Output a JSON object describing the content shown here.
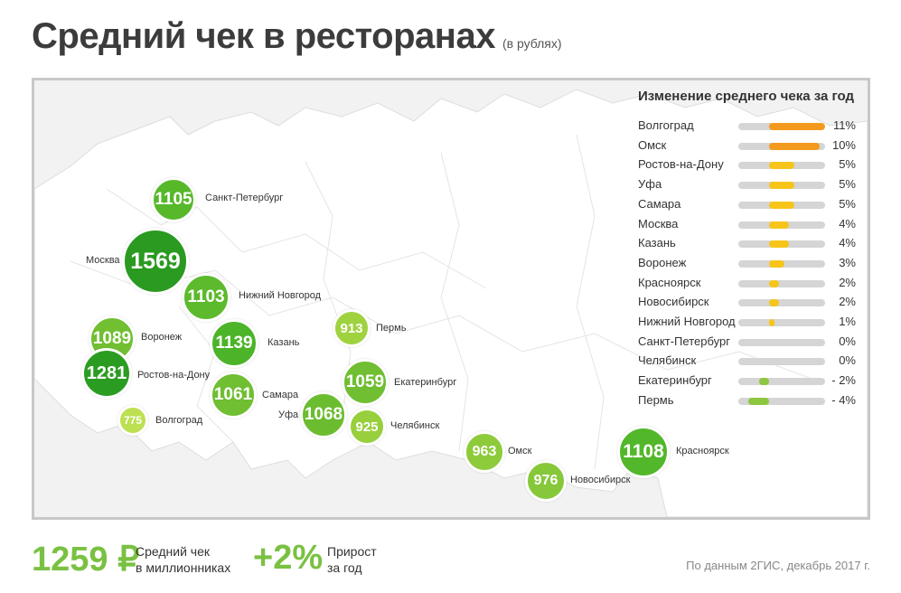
{
  "title": "Средний чек в ресторанах",
  "subtitle": "(в рублях)",
  "chart_data": [
    {
      "type": "bubble-map",
      "points": [
        {
          "city": "Санкт-Петербург",
          "value": 1105
        },
        {
          "city": "Москва",
          "value": 1569
        },
        {
          "city": "Нижний Новгород",
          "value": 1103
        },
        {
          "city": "Воронеж",
          "value": 1089
        },
        {
          "city": "Казань",
          "value": 1139
        },
        {
          "city": "Пермь",
          "value": 913
        },
        {
          "city": "Ростов-на-Дону",
          "value": 1281
        },
        {
          "city": "Самара",
          "value": 1061
        },
        {
          "city": "Екатеринбург",
          "value": 1059
        },
        {
          "city": "Волгоград",
          "value": 775
        },
        {
          "city": "Уфа",
          "value": 1068
        },
        {
          "city": "Челябинск",
          "value": 925
        },
        {
          "city": "Омск",
          "value": 963
        },
        {
          "city": "Красноярск",
          "value": 1108
        },
        {
          "city": "Новосибирск",
          "value": 976
        }
      ]
    },
    {
      "type": "bar",
      "title": "Изменение среднего чека за год",
      "categories": [
        "Волгоград",
        "Омск",
        "Ростов-на-Дону",
        "Уфа",
        "Самара",
        "Москва",
        "Казань",
        "Воронеж",
        "Красноярск",
        "Новосибирск",
        "Нижний Новгород",
        "Санкт-Петербург",
        "Челябинск",
        "Екатеринбург",
        "Пермь"
      ],
      "values": [
        11,
        10,
        5,
        5,
        5,
        4,
        4,
        3,
        2,
        2,
        1,
        0,
        0,
        -2,
        -4
      ],
      "labels": [
        "11%",
        "10%",
        "5%",
        "5%",
        "5%",
        "4%",
        "4%",
        "3%",
        "2%",
        "2%",
        "1%",
        "0%",
        "0%",
        "- 2%",
        "- 4%"
      ],
      "xlim": [
        -6,
        11
      ],
      "colors": {
        "high": "#f39a1e",
        "mid": "#f7c51a",
        "negative": "#8dc63f",
        "track": "#d5d5d5"
      }
    }
  ],
  "footer": {
    "avg_value": "1259 ₽",
    "avg_label_1": "Средний чек",
    "avg_label_2": "в миллионниках",
    "growth_value": "+2%",
    "growth_label_1": "Прирост",
    "growth_label_2": "за год",
    "source": "По данным 2ГИС, декабрь 2017 г."
  }
}
